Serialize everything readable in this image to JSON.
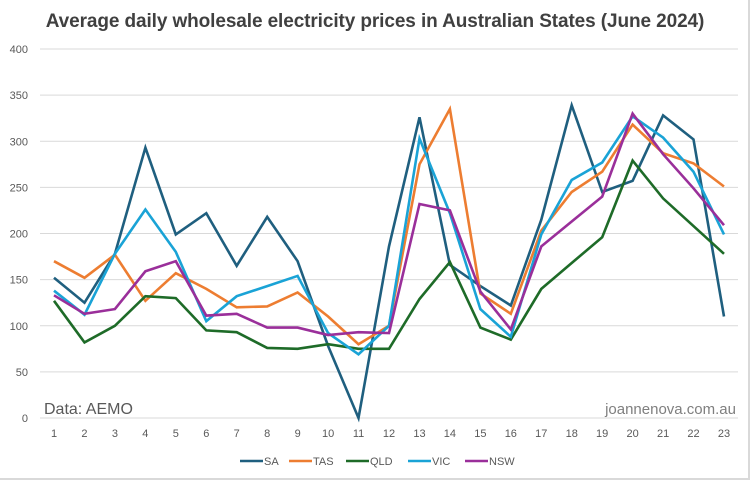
{
  "chart_data": {
    "type": "line",
    "title": "Average daily wholesale electricity prices in Australian States (June 2024)",
    "xlabel": "",
    "ylabel": "",
    "x": [
      1,
      2,
      3,
      4,
      5,
      6,
      7,
      8,
      9,
      10,
      11,
      12,
      13,
      14,
      15,
      16,
      17,
      18,
      19,
      20,
      21,
      22,
      23
    ],
    "ylim": [
      0,
      400
    ],
    "yticks": [
      0,
      50,
      100,
      150,
      200,
      250,
      300,
      350,
      400
    ],
    "grid": true,
    "legend_position": "bottom",
    "series": [
      {
        "name": "SA",
        "color": "#1f5f7f",
        "values": [
          152,
          125,
          178,
          293,
          199,
          222,
          165,
          218,
          170,
          78,
          0,
          186,
          326,
          166,
          143,
          122,
          215,
          339,
          245,
          257,
          328,
          302,
          110
        ]
      },
      {
        "name": "TAS",
        "color": "#ed7d31",
        "values": [
          170,
          152,
          177,
          127,
          157,
          140,
          120,
          121,
          136,
          110,
          80,
          100,
          275,
          335,
          135,
          113,
          203,
          245,
          267,
          318,
          287,
          276,
          251
        ]
      },
      {
        "name": "QLD",
        "color": "#1e6b28",
        "values": [
          127,
          82,
          100,
          132,
          130,
          95,
          93,
          76,
          75,
          80,
          75,
          75,
          129,
          169,
          98,
          85,
          140,
          168,
          196,
          279,
          238,
          208,
          178
        ]
      },
      {
        "name": "VIC",
        "color": "#1aa3d6",
        "values": [
          138,
          112,
          178,
          226,
          180,
          105,
          132,
          143,
          154,
          92,
          69,
          100,
          303,
          222,
          118,
          88,
          199,
          258,
          277,
          327,
          304,
          267,
          199
        ]
      },
      {
        "name": "NSW",
        "color": "#9a2f9a",
        "values": [
          133,
          113,
          118,
          159,
          170,
          111,
          113,
          98,
          98,
          90,
          93,
          92,
          232,
          225,
          137,
          96,
          186,
          213,
          240,
          330,
          286,
          249,
          209
        ]
      }
    ],
    "annotations": {
      "source": "Data: AEMO",
      "credit": "joannenova.com.au"
    }
  }
}
